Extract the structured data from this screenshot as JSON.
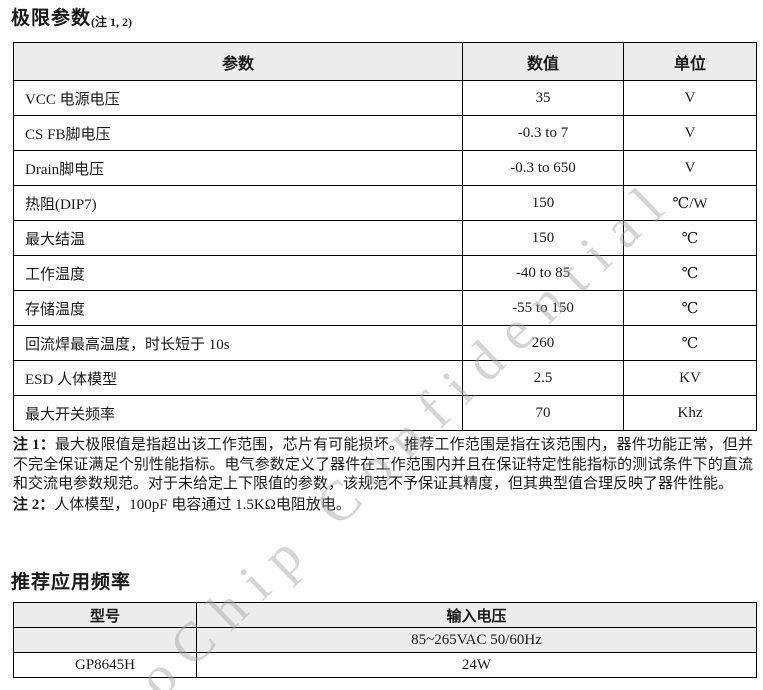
{
  "limits_section": {
    "title": "极限参数",
    "title_note": "(注 1, 2)",
    "table": {
      "headers": {
        "param": "参数",
        "value": "数值",
        "unit": "单位"
      },
      "rows": [
        {
          "param": "VCC 电源电压",
          "value": "35",
          "unit": "V"
        },
        {
          "param": "CS FB脚电压",
          "value": "-0.3 to 7",
          "unit": "V"
        },
        {
          "param": "Drain脚电压",
          "value": "-0.3 to 650",
          "unit": "V"
        },
        {
          "param": "热阻(DIP7)",
          "value": "150",
          "unit": "℃/W"
        },
        {
          "param": "最大结温",
          "value": "150",
          "unit": "℃"
        },
        {
          "param": "工作温度",
          "value": "-40 to 85",
          "unit": "℃"
        },
        {
          "param": "存储温度",
          "value": "-55 to 150",
          "unit": "℃"
        },
        {
          "param": "回流焊最高温度，时长短于 10s",
          "value": "260",
          "unit": "℃"
        },
        {
          "param": "ESD 人体模型",
          "value": "2.5",
          "unit": "KV"
        },
        {
          "param": "最大开关频率",
          "value": "70",
          "unit": "Khz"
        }
      ]
    }
  },
  "notes": {
    "note1_label": "注 1：",
    "note1_text": "最大极限值是指超出该工作范围，芯片有可能损坏。推荐工作范围是指在该范围内，器件功能正常，但并不完全保证满足个别性能指标。电气参数定义了器件在工作范围内并且在保证特定性能指标的测试条件下的直流和交流电参数规范。对于未给定上下限值的参数，该规范不予保证其精度，但其典型值合理反映了器件性能。",
    "note2_label": "注 2：",
    "note2_text": "人体模型，100pF 电容通过 1.5KΩ电阻放电。"
  },
  "freq_section": {
    "title": "推荐应用频率",
    "table": {
      "headers": {
        "model": "型号",
        "input": "输入电压"
      },
      "rows": [
        {
          "model": "",
          "input": "85~265VAC 50/60Hz"
        },
        {
          "model": "GP8645H",
          "input": "24W"
        }
      ]
    }
  },
  "watermark": {
    "text": "oChip Confidential"
  },
  "colors": {
    "table_header_bg": "#ececec",
    "border": "#000000",
    "watermark": "#a5a5a5"
  }
}
